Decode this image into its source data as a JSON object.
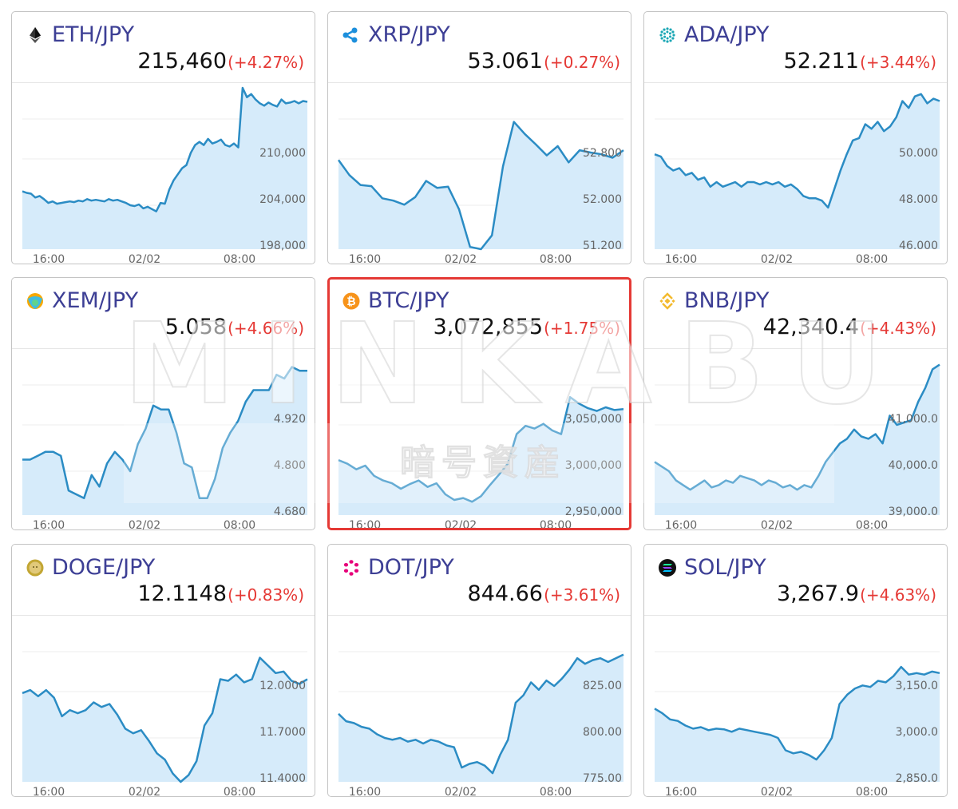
{
  "colors": {
    "line": "#2b8cc4",
    "fill": "#d6ebfa",
    "pair": "#3d3f95",
    "change": "#e53935",
    "highlight": "#e53935"
  },
  "watermark": {
    "main": "MINKABU",
    "sub": "暗号資産"
  },
  "cards": [
    {
      "pair": "ETH/JPY",
      "price": "215,460",
      "change": "(+4.27%)",
      "icon": "ethereum-icon",
      "chart_data": {
        "type": "area",
        "x_ticks": [
          "16:00",
          "02/02",
          "08:00"
        ],
        "y_ticks": [
          "210,000",
          "204,000",
          "198,000"
        ],
        "y_tick_values": [
          210000,
          204000,
          198000
        ],
        "values": [
          205800,
          205600,
          205500,
          205000,
          205200,
          204800,
          204300,
          204500,
          204200,
          204300,
          204400,
          204500,
          204400,
          204600,
          204500,
          204800,
          204600,
          204700,
          204600,
          204500,
          204800,
          204600,
          204700,
          204500,
          204300,
          204000,
          203900,
          204100,
          203600,
          203800,
          203500,
          203200,
          204300,
          204200,
          206000,
          207200,
          208000,
          208800,
          209200,
          210800,
          211800,
          212200,
          211800,
          212600,
          212000,
          212200,
          212500,
          211800,
          211600,
          212000,
          211500,
          219800,
          218000,
          218400,
          217700,
          217200,
          216900,
          217300,
          217000,
          216800,
          217700,
          217200,
          217300,
          217500,
          217200,
          217500,
          217400
        ]
      }
    },
    {
      "pair": "XRP/JPY",
      "price": "53.061",
      "change": "(+0.27%)",
      "icon": "xrp-icon",
      "chart_data": {
        "type": "area",
        "x_ticks": [
          "16:00",
          "02/02",
          "08:00"
        ],
        "y_ticks": [
          "52.800",
          "52.000",
          "51.200"
        ],
        "y_tick_values": [
          52.8,
          52.0,
          51.2
        ],
        "values": [
          52.78,
          52.52,
          52.35,
          52.33,
          52.12,
          52.08,
          52.01,
          52.14,
          52.42,
          52.3,
          52.32,
          51.93,
          51.28,
          51.23,
          51.48,
          52.67,
          53.44,
          53.23,
          53.05,
          52.86,
          53.02,
          52.74,
          52.95,
          52.91,
          52.88,
          52.82,
          52.95
        ]
      }
    },
    {
      "pair": "ADA/JPY",
      "price": "52.211",
      "change": "(+3.44%)",
      "icon": "cardano-icon",
      "chart_data": {
        "type": "area",
        "x_ticks": [
          "16:00",
          "02/02",
          "08:00"
        ],
        "y_ticks": [
          "50.000",
          "48.000",
          "46.000"
        ],
        "y_tick_values": [
          50,
          48,
          46
        ],
        "values": [
          50.2,
          50.1,
          49.7,
          49.5,
          49.6,
          49.3,
          49.4,
          49.1,
          49.2,
          48.8,
          49.0,
          48.8,
          48.9,
          49.0,
          48.8,
          49.0,
          49.0,
          48.9,
          49.0,
          48.9,
          49.0,
          48.8,
          48.9,
          48.7,
          48.4,
          48.3,
          48.3,
          48.2,
          47.9,
          48.7,
          49.5,
          50.2,
          50.8,
          50.9,
          51.5,
          51.3,
          51.6,
          51.2,
          51.4,
          51.8,
          52.5,
          52.2,
          52.7,
          52.8,
          52.4,
          52.6,
          52.5
        ]
      }
    },
    {
      "pair": "XEM/JPY",
      "price": "5.058",
      "change": "(+4.66%)",
      "icon": "nem-icon",
      "chart_data": {
        "type": "area",
        "x_ticks": [
          "16:00",
          "02/02",
          "08:00"
        ],
        "y_ticks": [
          "4.920",
          "4.800",
          "4.680"
        ],
        "y_tick_values": [
          4.92,
          4.8,
          4.68
        ],
        "values": [
          4.83,
          4.83,
          4.84,
          4.85,
          4.85,
          4.84,
          4.75,
          4.74,
          4.73,
          4.79,
          4.76,
          4.82,
          4.85,
          4.83,
          4.8,
          4.87,
          4.91,
          4.97,
          4.96,
          4.96,
          4.9,
          4.82,
          4.81,
          4.73,
          4.73,
          4.78,
          4.86,
          4.9,
          4.93,
          4.98,
          5.01,
          5.01,
          5.01,
          5.05,
          5.04,
          5.07,
          5.06,
          5.06
        ]
      }
    },
    {
      "pair": "BTC/JPY",
      "price": "3,072,855",
      "change": "(+1.75%)",
      "icon": "bitcoin-icon",
      "highlight": true,
      "chart_data": {
        "type": "area",
        "x_ticks": [
          "16:00",
          "02/02",
          "08:00"
        ],
        "y_ticks": [
          "3,050,000",
          "3,000,000",
          "2,950,000"
        ],
        "y_tick_values": [
          3050000,
          3000000,
          2950000
        ],
        "values": [
          3012000,
          3008000,
          3002000,
          3006000,
          2995000,
          2990000,
          2987000,
          2981000,
          2986000,
          2990000,
          2983000,
          2987000,
          2975000,
          2969000,
          2971000,
          2967000,
          2973000,
          2985000,
          2996000,
          3008000,
          3040000,
          3049000,
          3046000,
          3051000,
          3044000,
          3040000,
          3080000,
          3073000,
          3068000,
          3065000,
          3069000,
          3066000,
          3067000
        ]
      }
    },
    {
      "pair": "BNB/JPY",
      "price": "42,340.4",
      "change": "(+4.43%)",
      "icon": "binance-icon",
      "chart_data": {
        "type": "area",
        "x_ticks": [
          "16:00",
          "02/02",
          "08:00"
        ],
        "y_ticks": [
          "41,000.0",
          "40,000.0",
          "39,000.0"
        ],
        "y_tick_values": [
          41000,
          40000,
          39000
        ],
        "values": [
          40200,
          40100,
          40000,
          39800,
          39700,
          39600,
          39700,
          39800,
          39650,
          39700,
          39800,
          39750,
          39900,
          39850,
          39800,
          39700,
          39800,
          39750,
          39650,
          39700,
          39600,
          39700,
          39650,
          39900,
          40200,
          40400,
          40600,
          40700,
          40900,
          40750,
          40700,
          40800,
          40600,
          41200,
          41000,
          41050,
          41100,
          41500,
          41800,
          42200,
          42300
        ]
      }
    },
    {
      "pair": "DOGE/JPY",
      "price": "12.1148",
      "change": "(+0.83%)",
      "icon": "dogecoin-icon",
      "chart_data": {
        "type": "area",
        "x_ticks": [
          "16:00",
          "02/02",
          "08:00"
        ],
        "y_ticks": [
          "12.0000",
          "11.7000",
          "11.4000"
        ],
        "y_tick_values": [
          12.0,
          11.7,
          11.4
        ],
        "values": [
          11.99,
          12.01,
          11.97,
          12.01,
          11.96,
          11.84,
          11.88,
          11.86,
          11.88,
          11.93,
          11.9,
          11.92,
          11.85,
          11.76,
          11.73,
          11.75,
          11.68,
          11.6,
          11.56,
          11.47,
          11.41,
          11.46,
          11.55,
          11.78,
          11.86,
          12.08,
          12.07,
          12.11,
          12.06,
          12.08,
          12.22,
          12.17,
          12.12,
          12.13,
          12.07,
          12.05,
          12.08
        ]
      }
    },
    {
      "pair": "DOT/JPY",
      "price": "844.66",
      "change": "(+3.61%)",
      "icon": "polkadot-icon",
      "chart_data": {
        "type": "area",
        "x_ticks": [
          "16:00",
          "02/02",
          "08:00"
        ],
        "y_ticks": [
          "825.00",
          "800.00",
          "775.00"
        ],
        "y_tick_values": [
          825,
          800,
          775
        ],
        "values": [
          813,
          809,
          808,
          806,
          805,
          802,
          800,
          799,
          800,
          798,
          799,
          797,
          799,
          798,
          796,
          795,
          784,
          786,
          787,
          785,
          781,
          791,
          799,
          819,
          823,
          830,
          826,
          831,
          828,
          832,
          837,
          843,
          840,
          842,
          843,
          841,
          843,
          845
        ]
      }
    },
    {
      "pair": "SOL/JPY",
      "price": "3,267.9",
      "change": "(+4.63%)",
      "icon": "solana-icon",
      "chart_data": {
        "type": "area",
        "x_ticks": [
          "16:00",
          "02/02",
          "08:00"
        ],
        "y_ticks": [
          "3,150.0",
          "3,000.0",
          "2,850.0"
        ],
        "y_tick_values": [
          3150,
          3000,
          2850
        ],
        "values": [
          3095,
          3080,
          3060,
          3055,
          3040,
          3030,
          3035,
          3025,
          3030,
          3028,
          3020,
          3030,
          3025,
          3020,
          3015,
          3010,
          3000,
          2960,
          2950,
          2955,
          2945,
          2930,
          2960,
          3000,
          3110,
          3140,
          3160,
          3170,
          3165,
          3185,
          3180,
          3200,
          3230,
          3205,
          3210,
          3205,
          3215,
          3210
        ]
      }
    }
  ]
}
